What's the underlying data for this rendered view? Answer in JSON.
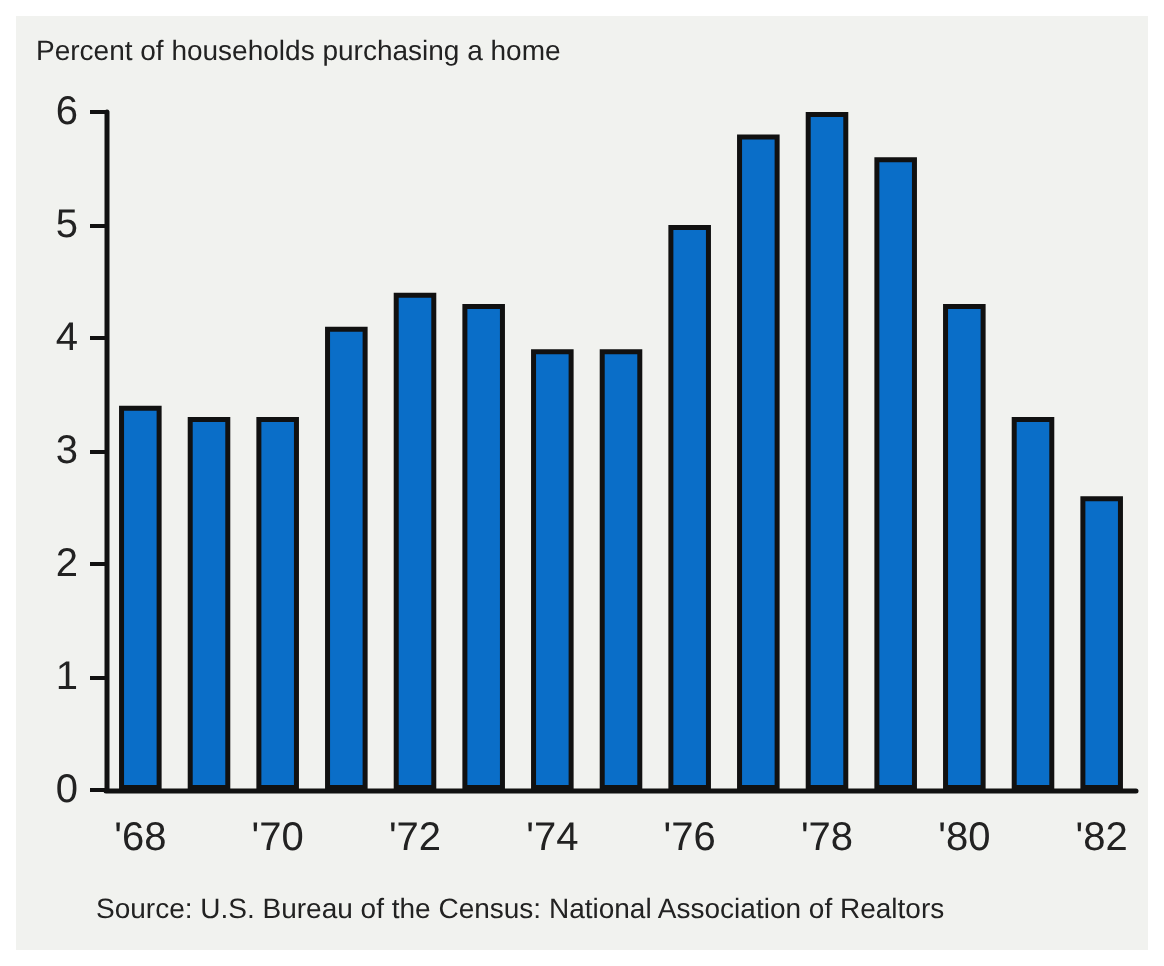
{
  "chart_data": {
    "type": "bar",
    "ylabel": "Percent of households purchasing a home",
    "categories": [
      "'68",
      null,
      "'70",
      null,
      "'72",
      null,
      "'74",
      null,
      "'76",
      null,
      "'78",
      null,
      "'80",
      null,
      "'82"
    ],
    "values": [
      3.4,
      3.3,
      3.3,
      4.1,
      4.4,
      4.3,
      3.9,
      3.9,
      5.0,
      5.8,
      6.0,
      5.6,
      4.3,
      3.3,
      2.6
    ],
    "color": "#0a6ec8",
    "ylim": [
      0,
      6
    ],
    "yticks": [
      0,
      1,
      2,
      3,
      4,
      5,
      6
    ],
    "grid": false,
    "annotations": [
      "Source: U.S. Bureau of the Census: National Association of Realtors"
    ]
  }
}
